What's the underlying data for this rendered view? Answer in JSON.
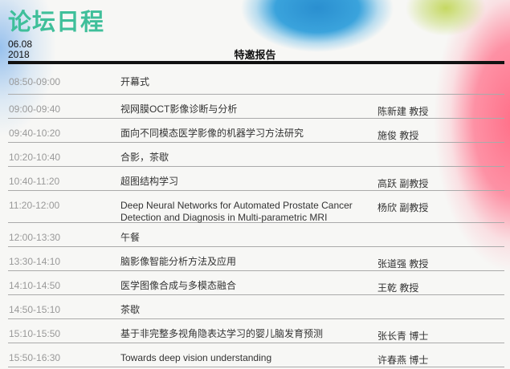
{
  "header": {
    "title": "论坛日程",
    "date_line1": "06.08",
    "date_line2": "2018",
    "section": "特邀报告"
  },
  "colors": {
    "title": "#3fbf9a",
    "time": "#999999"
  },
  "rows": [
    {
      "time": "08:50-09:00",
      "subject": "开幕式",
      "speaker": ""
    },
    {
      "time": "09:00-09:40",
      "subject": "视网膜OCT影像诊断与分析",
      "speaker": "陈新建 教授"
    },
    {
      "time": "09:40-10:20",
      "subject": "面向不同模态医学影像的机器学习方法研究",
      "speaker": "施俊 教授"
    },
    {
      "time": "10:20-10:40",
      "subject": "合影，茶歇",
      "speaker": ""
    },
    {
      "time": "10:40-11:20",
      "subject": "超图结构学习",
      "speaker": "高跃 副教授"
    },
    {
      "time": "11:20-12:00",
      "subject": "Deep Neural Networks for Automated Prostate Cancer Detection and Diagnosis in Multi-parametric MRI",
      "speaker": "杨欣 副教授"
    },
    {
      "time": "12:00-13:30",
      "subject": "午餐",
      "speaker": ""
    },
    {
      "time": "13:30-14:10",
      "subject": "脑影像智能分析方法及应用",
      "speaker": "张道强 教授"
    },
    {
      "time": "14:10-14:50",
      "subject": "医学图像合成与多模态融合",
      "speaker": "王乾 教授"
    },
    {
      "time": "14:50-15:10",
      "subject": "茶歇",
      "speaker": ""
    },
    {
      "time": "15:10-15:50",
      "subject": "基于非完整多视角隐表达学习的婴儿脑发育预测",
      "speaker": "张长青 博士"
    },
    {
      "time": "15:50-16:30",
      "subject": "Towards deep vision understanding",
      "speaker": "许春燕 博士"
    }
  ]
}
